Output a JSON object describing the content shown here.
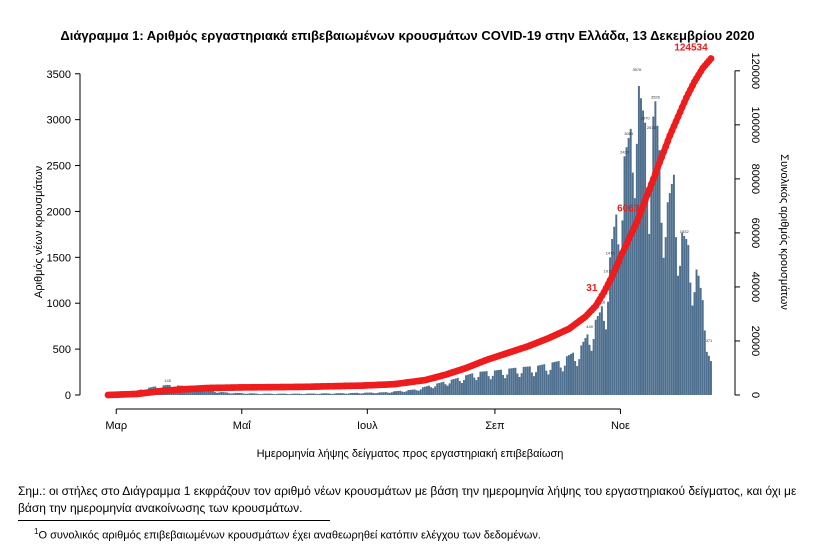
{
  "chart_data": {
    "type": "bar",
    "title": "Διάγραμμα 1: Αριθμός εργαστηριακά επιβεβαιωμένων κρουσμάτων COVID-19 στην Ελλάδα, 13 Δεκεμβρίου 2020",
    "xlabel": "Ημερομηνία λήψης δείγματος προς εργαστηριακή επιβεβαίωση",
    "ylabel": "Αριθμός νέων κρουσμάτων",
    "ylabel_right": "Συνολικός αριθμός κρουσμάτων",
    "ylim": [
      0,
      3650
    ],
    "ylim_right": [
      0,
      124000
    ],
    "yticks": [
      0,
      500,
      1000,
      1500,
      2000,
      2500,
      3000,
      3500
    ],
    "yticks_right": [
      0,
      20000,
      40000,
      60000,
      80000,
      100000,
      120000
    ],
    "x_ticks": [
      {
        "label": "Μαρ",
        "day": 0
      },
      {
        "label": "Μαΐ",
        "day": 61
      },
      {
        "label": "Ιουλ",
        "day": 122
      },
      {
        "label": "Σεπ",
        "day": 184
      },
      {
        "label": "Νοε",
        "day": 245
      }
    ],
    "x_range": [
      -4,
      289
    ],
    "bar_color": "#4e6f8e",
    "line_color": "#ee1c1c",
    "daily_anchors": [
      [
        -4,
        2
      ],
      [
        5,
        20
      ],
      [
        12,
        60
      ],
      [
        18,
        90
      ],
      [
        25,
        110
      ],
      [
        33,
        100
      ],
      [
        40,
        70
      ],
      [
        48,
        40
      ],
      [
        55,
        25
      ],
      [
        70,
        15
      ],
      [
        90,
        15
      ],
      [
        110,
        20
      ],
      [
        130,
        30
      ],
      [
        145,
        60
      ],
      [
        155,
        120
      ],
      [
        165,
        180
      ],
      [
        175,
        250
      ],
      [
        185,
        270
      ],
      [
        195,
        300
      ],
      [
        205,
        320
      ],
      [
        215,
        370
      ],
      [
        225,
        500
      ],
      [
        230,
        700
      ],
      [
        235,
        900
      ],
      [
        238,
        1100
      ],
      [
        241,
        1700
      ],
      [
        244,
        2100
      ],
      [
        247,
        2600
      ],
      [
        250,
        2900
      ],
      [
        253,
        3500
      ],
      [
        256,
        3100
      ],
      [
        259,
        2700
      ],
      [
        262,
        3200
      ],
      [
        265,
        2400
      ],
      [
        268,
        2100
      ],
      [
        271,
        2400
      ],
      [
        274,
        1800
      ],
      [
        277,
        1700
      ],
      [
        280,
        1500
      ],
      [
        283,
        1300
      ],
      [
        286,
        900
      ],
      [
        289,
        370
      ]
    ],
    "cumulative_anchors": [
      [
        -4,
        0
      ],
      [
        10,
        400
      ],
      [
        20,
        1300
      ],
      [
        30,
        2000
      ],
      [
        45,
        2600
      ],
      [
        60,
        2800
      ],
      [
        90,
        3000
      ],
      [
        120,
        3500
      ],
      [
        135,
        4000
      ],
      [
        150,
        5500
      ],
      [
        160,
        7500
      ],
      [
        170,
        10000
      ],
      [
        180,
        13000
      ],
      [
        190,
        15500
      ],
      [
        200,
        18000
      ],
      [
        210,
        21000
      ],
      [
        220,
        24500
      ],
      [
        228,
        29000
      ],
      [
        233,
        33000
      ],
      [
        237,
        38000
      ],
      [
        241,
        44000
      ],
      [
        245,
        51000
      ],
      [
        249,
        57500
      ],
      [
        253,
        64000
      ],
      [
        257,
        72000
      ],
      [
        261,
        80000
      ],
      [
        265,
        88000
      ],
      [
        269,
        96000
      ],
      [
        273,
        103000
      ],
      [
        277,
        110000
      ],
      [
        281,
        116000
      ],
      [
        285,
        121000
      ],
      [
        289,
        124534
      ]
    ],
    "annotations": {
      "cumulative_labels": [
        "31",
        "60631",
        "124534"
      ],
      "peak_labels": [
        "3576",
        "3526",
        "3083",
        "2870",
        "2878",
        "2429",
        "1832",
        "1476",
        "1013",
        "716",
        "449",
        "371",
        "145",
        "143"
      ]
    }
  },
  "notes": {
    "main": "Σημ.: οι στήλες στο Διάγραμμα 1 εκφράζουν τον αριθμό νέων κρουσμάτων με βάση την ημερομηνία λήψης του εργαστηριακού δείγματος, και όχι με βάση την ημερομηνία ανακοίνωσης των κρουσμάτων.",
    "footnote_marker": "1",
    "footnote": "Ο συνολικός αριθμός επιβεβαιωμένων κρουσμάτων έχει αναθεωρηθεί κατόπιν ελέγχου των δεδομένων."
  }
}
